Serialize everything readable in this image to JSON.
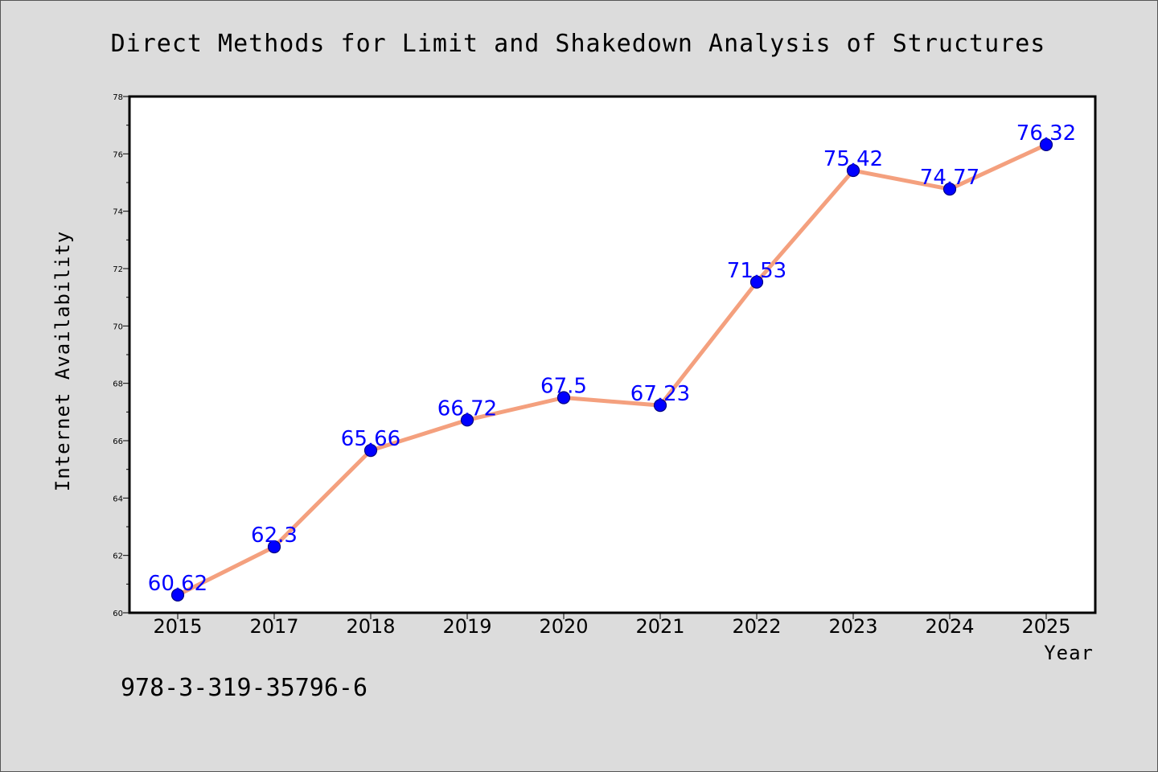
{
  "chart_data": {
    "type": "line",
    "title": "Direct Methods for Limit and Shakedown Analysis of Structures",
    "xlabel": "Year",
    "ylabel": "Internet Availability",
    "categories": [
      "2015",
      "2017",
      "2018",
      "2019",
      "2020",
      "2021",
      "2022",
      "2023",
      "2024",
      "2025"
    ],
    "values": [
      60.62,
      62.3,
      65.66,
      66.72,
      67.5,
      67.23,
      71.53,
      75.42,
      74.77,
      76.32
    ],
    "data_labels": [
      "60.62",
      "62.3",
      "65.66",
      "66.72",
      "67.5",
      "67.23",
      "71.53",
      "75.42",
      "74.77",
      "76.32"
    ],
    "ylim": [
      60,
      78
    ],
    "yticks": [
      60,
      62,
      64,
      66,
      68,
      70,
      72,
      74,
      76,
      78
    ],
    "ytick_labels": [
      "60",
      "62",
      "64",
      "66",
      "68",
      "70",
      "72",
      "74",
      "76",
      "78"
    ],
    "grid": false,
    "legend": "none",
    "colors": {
      "line": "#f4a07e",
      "marker": "#0000ff",
      "marker_edge": "#000080",
      "label": "#0000ff",
      "background": "#dcdcdc",
      "plot_background": "#ffffff"
    }
  },
  "footer": {
    "isbn": "978-3-319-35796-6"
  }
}
